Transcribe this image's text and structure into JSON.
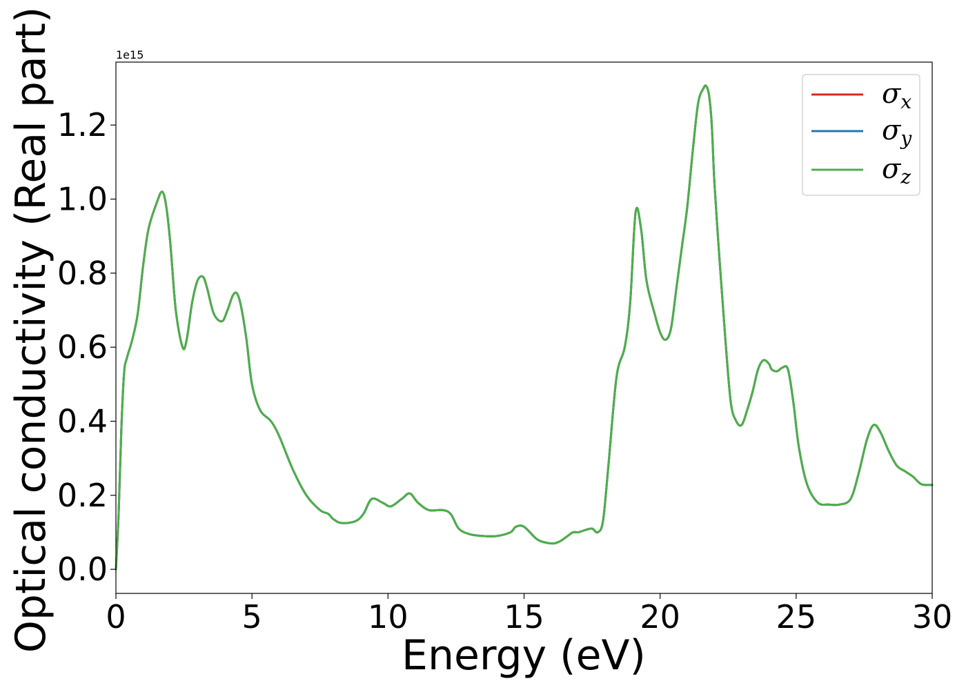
{
  "chart_data": {
    "type": "line",
    "xlabel": "Energy (eV)",
    "ylabel": "Optical conductivity (Real part)",
    "y_offset_label": "1e15",
    "y_scale_factor": 1000000000000000.0,
    "xlim": [
      0,
      30
    ],
    "ylim": [
      -0.065,
      1.37
    ],
    "x_ticks": [
      0,
      5,
      10,
      15,
      20,
      25,
      30
    ],
    "x_tick_labels": [
      "0",
      "5",
      "10",
      "15",
      "20",
      "25",
      "30"
    ],
    "y_ticks": [
      0.0,
      0.2,
      0.4,
      0.6,
      0.8,
      1.0,
      1.2
    ],
    "y_tick_labels": [
      "0.0",
      "0.2",
      "0.4",
      "0.6",
      "0.8",
      "1.0",
      "1.2"
    ],
    "grid": false,
    "legend_position": "top-right",
    "colors": {
      "sigma_x": "#d62728",
      "sigma_y": "#1f77b4",
      "sigma_z": "#4daf4a"
    },
    "legend": [
      {
        "symbol": "σ",
        "sub": "x",
        "color": "#d62728"
      },
      {
        "symbol": "σ",
        "sub": "y",
        "color": "#1f77b4"
      },
      {
        "symbol": "σ",
        "sub": "z",
        "color": "#4daf4a"
      }
    ],
    "x": [
      0,
      0.1,
      0.2,
      0.3,
      0.4,
      0.6,
      0.8,
      1.0,
      1.2,
      1.5,
      1.7,
      1.85,
      2.0,
      2.2,
      2.45,
      2.6,
      2.8,
      3.0,
      3.2,
      3.35,
      3.6,
      3.9,
      4.1,
      4.3,
      4.45,
      4.6,
      4.8,
      5.0,
      5.3,
      5.7,
      6.0,
      6.5,
      7.0,
      7.5,
      7.8,
      8.0,
      8.3,
      8.8,
      9.1,
      9.4,
      9.8,
      10.1,
      10.5,
      10.8,
      11.1,
      11.5,
      12.0,
      12.3,
      12.6,
      13.0,
      13.5,
      14.0,
      14.5,
      14.7,
      15.0,
      15.5,
      16.0,
      16.3,
      16.6,
      16.8,
      17.0,
      17.2,
      17.5,
      17.7,
      17.9,
      18.1,
      18.4,
      18.7,
      18.9,
      19.1,
      19.3,
      19.5,
      19.8,
      20.0,
      20.2,
      20.4,
      20.6,
      20.8,
      21.0,
      21.2,
      21.4,
      21.6,
      21.7,
      21.8,
      21.9,
      22.0,
      22.2,
      22.4,
      22.6,
      22.8,
      23.0,
      23.2,
      23.4,
      23.6,
      23.8,
      24.0,
      24.1,
      24.3,
      24.5,
      24.7,
      24.9,
      25.1,
      25.4,
      25.8,
      26.2,
      26.6,
      27.0,
      27.3,
      27.6,
      27.85,
      28.1,
      28.4,
      28.7,
      29.0,
      29.3,
      29.6,
      30.0
    ],
    "series": [
      {
        "name": "σx",
        "values": [
          0.0,
          0.15,
          0.38,
          0.53,
          0.57,
          0.62,
          0.69,
          0.82,
          0.92,
          0.99,
          1.02,
          0.98,
          0.88,
          0.7,
          0.6,
          0.62,
          0.72,
          0.78,
          0.79,
          0.76,
          0.69,
          0.67,
          0.7,
          0.74,
          0.745,
          0.71,
          0.62,
          0.5,
          0.43,
          0.4,
          0.36,
          0.27,
          0.2,
          0.16,
          0.15,
          0.135,
          0.125,
          0.13,
          0.15,
          0.19,
          0.18,
          0.17,
          0.19,
          0.205,
          0.18,
          0.16,
          0.16,
          0.15,
          0.11,
          0.095,
          0.09,
          0.09,
          0.1,
          0.115,
          0.115,
          0.08,
          0.07,
          0.075,
          0.09,
          0.1,
          0.1,
          0.105,
          0.11,
          0.1,
          0.13,
          0.28,
          0.52,
          0.6,
          0.72,
          0.965,
          0.92,
          0.78,
          0.69,
          0.64,
          0.62,
          0.65,
          0.76,
          0.87,
          0.98,
          1.13,
          1.26,
          1.3,
          1.305,
          1.28,
          1.2,
          1.04,
          0.82,
          0.62,
          0.45,
          0.4,
          0.39,
          0.43,
          0.48,
          0.54,
          0.565,
          0.555,
          0.54,
          0.535,
          0.545,
          0.54,
          0.45,
          0.33,
          0.23,
          0.18,
          0.175,
          0.175,
          0.19,
          0.26,
          0.35,
          0.39,
          0.37,
          0.32,
          0.28,
          0.265,
          0.25,
          0.23,
          0.228
        ]
      },
      {
        "name": "σy",
        "values": [
          0.0,
          0.15,
          0.38,
          0.53,
          0.57,
          0.62,
          0.69,
          0.82,
          0.92,
          0.99,
          1.02,
          0.98,
          0.88,
          0.7,
          0.6,
          0.62,
          0.72,
          0.78,
          0.79,
          0.76,
          0.69,
          0.67,
          0.7,
          0.74,
          0.745,
          0.71,
          0.62,
          0.5,
          0.43,
          0.4,
          0.36,
          0.27,
          0.2,
          0.16,
          0.15,
          0.135,
          0.125,
          0.13,
          0.15,
          0.19,
          0.18,
          0.17,
          0.19,
          0.205,
          0.18,
          0.16,
          0.16,
          0.15,
          0.11,
          0.095,
          0.09,
          0.09,
          0.1,
          0.115,
          0.115,
          0.08,
          0.07,
          0.075,
          0.09,
          0.1,
          0.1,
          0.105,
          0.11,
          0.1,
          0.13,
          0.28,
          0.52,
          0.6,
          0.72,
          0.965,
          0.92,
          0.78,
          0.69,
          0.64,
          0.62,
          0.65,
          0.76,
          0.87,
          0.98,
          1.13,
          1.26,
          1.3,
          1.305,
          1.28,
          1.2,
          1.04,
          0.82,
          0.62,
          0.45,
          0.4,
          0.39,
          0.43,
          0.48,
          0.54,
          0.565,
          0.555,
          0.54,
          0.535,
          0.545,
          0.54,
          0.45,
          0.33,
          0.23,
          0.18,
          0.175,
          0.175,
          0.19,
          0.26,
          0.35,
          0.39,
          0.37,
          0.32,
          0.28,
          0.265,
          0.25,
          0.23,
          0.228
        ]
      },
      {
        "name": "σz",
        "values": [
          0.0,
          0.15,
          0.38,
          0.53,
          0.57,
          0.62,
          0.69,
          0.82,
          0.92,
          0.99,
          1.02,
          0.98,
          0.88,
          0.7,
          0.6,
          0.62,
          0.72,
          0.78,
          0.79,
          0.76,
          0.69,
          0.67,
          0.7,
          0.74,
          0.745,
          0.71,
          0.62,
          0.5,
          0.43,
          0.4,
          0.36,
          0.27,
          0.2,
          0.16,
          0.15,
          0.135,
          0.125,
          0.13,
          0.15,
          0.19,
          0.18,
          0.17,
          0.19,
          0.205,
          0.18,
          0.16,
          0.16,
          0.15,
          0.11,
          0.095,
          0.09,
          0.09,
          0.1,
          0.115,
          0.115,
          0.08,
          0.07,
          0.075,
          0.09,
          0.1,
          0.1,
          0.105,
          0.11,
          0.1,
          0.13,
          0.28,
          0.52,
          0.6,
          0.72,
          0.965,
          0.92,
          0.78,
          0.69,
          0.64,
          0.62,
          0.65,
          0.76,
          0.87,
          0.98,
          1.13,
          1.26,
          1.3,
          1.305,
          1.28,
          1.2,
          1.04,
          0.82,
          0.62,
          0.45,
          0.4,
          0.39,
          0.43,
          0.48,
          0.54,
          0.565,
          0.555,
          0.54,
          0.535,
          0.545,
          0.54,
          0.45,
          0.33,
          0.23,
          0.18,
          0.175,
          0.175,
          0.19,
          0.26,
          0.35,
          0.39,
          0.37,
          0.32,
          0.28,
          0.265,
          0.25,
          0.23,
          0.228
        ]
      }
    ]
  }
}
